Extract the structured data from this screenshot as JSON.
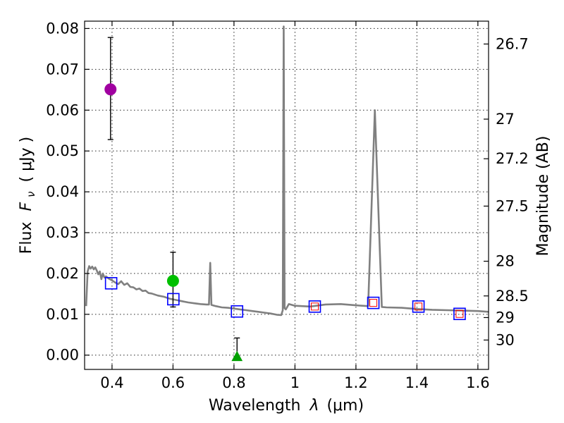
{
  "chart_data": {
    "type": "scatter",
    "xlabel_prefix": "Wavelength",
    "xlabel_symbol": "λ",
    "xlabel_unit": "(μm)",
    "ylabel_prefix": "Flux",
    "ylabel_symbol": "F",
    "ylabel_subscript": "ν",
    "ylabel_unit": "( μJy )",
    "ylabel_right": "Magnitude (AB)",
    "xlim": [
      0.31,
      1.635
    ],
    "ylim": [
      -0.0035,
      0.0818
    ],
    "xticks": [
      0.4,
      0.6,
      0.8,
      1.0,
      1.2,
      1.4,
      1.6
    ],
    "xtick_labels": [
      "0.4",
      "0.6",
      "0.8",
      "1",
      "1.2",
      "1.4",
      "1.6"
    ],
    "yticks": [
      0.0,
      0.01,
      0.02,
      0.03,
      0.04,
      0.05,
      0.06,
      0.07,
      0.08
    ],
    "ytick_labels": [
      "0.00",
      "0.01",
      "0.02",
      "0.03",
      "0.04",
      "0.05",
      "0.06",
      "0.07",
      "0.08"
    ],
    "right_ticks": [
      {
        "label": "26.7",
        "flux": 0.0762
      },
      {
        "label": "27",
        "flux": 0.0578
      },
      {
        "label": "27.2",
        "flux": 0.0481
      },
      {
        "label": "27.5",
        "flux": 0.0365
      },
      {
        "label": "28",
        "flux": 0.023
      },
      {
        "label": "28.5",
        "flux": 0.0145
      },
      {
        "label": "29",
        "flux": 0.0092
      },
      {
        "label": "30",
        "flux": 0.0037
      }
    ],
    "sed_model": {
      "color": "#808080",
      "points": [
        [
          0.315,
          0.012
        ],
        [
          0.32,
          0.0205
        ],
        [
          0.325,
          0.0218
        ],
        [
          0.33,
          0.0212
        ],
        [
          0.335,
          0.0217
        ],
        [
          0.34,
          0.021
        ],
        [
          0.345,
          0.0215
        ],
        [
          0.35,
          0.0207
        ],
        [
          0.355,
          0.0198
        ],
        [
          0.36,
          0.0205
        ],
        [
          0.365,
          0.0186
        ],
        [
          0.37,
          0.02
        ],
        [
          0.375,
          0.019
        ],
        [
          0.38,
          0.0193
        ],
        [
          0.39,
          0.0187
        ],
        [
          0.4,
          0.0183
        ],
        [
          0.41,
          0.0178
        ],
        [
          0.42,
          0.0174
        ],
        [
          0.43,
          0.0181
        ],
        [
          0.44,
          0.0172
        ],
        [
          0.45,
          0.0176
        ],
        [
          0.46,
          0.0167
        ],
        [
          0.47,
          0.0166
        ],
        [
          0.48,
          0.0161
        ],
        [
          0.49,
          0.0163
        ],
        [
          0.5,
          0.0157
        ],
        [
          0.51,
          0.0158
        ],
        [
          0.52,
          0.0152
        ],
        [
          0.53,
          0.0151
        ],
        [
          0.55,
          0.0146
        ],
        [
          0.57,
          0.0143
        ],
        [
          0.59,
          0.0138
        ],
        [
          0.61,
          0.0135
        ],
        [
          0.63,
          0.0132
        ],
        [
          0.65,
          0.0129
        ],
        [
          0.67,
          0.0127
        ],
        [
          0.69,
          0.0125
        ],
        [
          0.71,
          0.0124
        ],
        [
          0.718,
          0.0124
        ],
        [
          0.722,
          0.0226
        ],
        [
          0.726,
          0.0123
        ],
        [
          0.74,
          0.012
        ],
        [
          0.76,
          0.0117
        ],
        [
          0.78,
          0.0116
        ],
        [
          0.8,
          0.0114
        ],
        [
          0.82,
          0.0112
        ],
        [
          0.84,
          0.011
        ],
        [
          0.86,
          0.0108
        ],
        [
          0.88,
          0.0106
        ],
        [
          0.9,
          0.0104
        ],
        [
          0.92,
          0.0102
        ],
        [
          0.94,
          0.0099
        ],
        [
          0.955,
          0.0098
        ],
        [
          0.96,
          0.011
        ],
        [
          0.963,
          0.0805
        ],
        [
          0.966,
          0.0115
        ],
        [
          0.97,
          0.0112
        ],
        [
          0.98,
          0.0125
        ],
        [
          1.0,
          0.0121
        ],
        [
          1.05,
          0.0119
        ],
        [
          1.1,
          0.0124
        ],
        [
          1.15,
          0.0125
        ],
        [
          1.2,
          0.0122
        ],
        [
          1.24,
          0.012
        ],
        [
          1.262,
          0.06
        ],
        [
          1.285,
          0.0118
        ],
        [
          1.3,
          0.0117
        ],
        [
          1.35,
          0.0116
        ],
        [
          1.4,
          0.0113
        ],
        [
          1.45,
          0.0111
        ],
        [
          1.5,
          0.011
        ],
        [
          1.55,
          0.0109
        ],
        [
          1.6,
          0.0108
        ],
        [
          1.635,
          0.0106
        ]
      ]
    },
    "series": [
      {
        "name": "model-photometry",
        "marker": "square-open",
        "color": "#0000ff",
        "x": [
          0.397,
          0.601,
          0.81,
          1.065,
          1.257,
          1.405,
          1.54
        ],
        "y": [
          0.0176,
          0.0137,
          0.0107,
          0.0119,
          0.0128,
          0.0119,
          0.0101
        ]
      },
      {
        "name": "observed-photometry",
        "marker": "square-open-small",
        "color": "#ff0000",
        "x": [
          1.065,
          1.257,
          1.405,
          1.54
        ],
        "y": [
          0.0119,
          0.0128,
          0.0119,
          0.0101
        ]
      },
      {
        "name": "detection-u",
        "marker": "circle",
        "color": "#a000a0",
        "x": [
          0.395
        ],
        "y": [
          0.0651
        ],
        "yerr_low": [
          0.0528
        ],
        "yerr_high": [
          0.0778
        ]
      },
      {
        "name": "detection-v",
        "marker": "circle",
        "color": "#00c000",
        "x": [
          0.6
        ],
        "y": [
          0.0182
        ],
        "yerr_low": [
          0.0118
        ],
        "yerr_high": [
          0.0252
        ]
      },
      {
        "name": "upper-limit-i",
        "marker": "triangle",
        "color": "#00a000",
        "x": [
          0.81
        ],
        "y": [
          -0.0005
        ],
        "yerr_low": [
          -0.0005
        ],
        "yerr_high": [
          0.0042
        ]
      }
    ]
  }
}
